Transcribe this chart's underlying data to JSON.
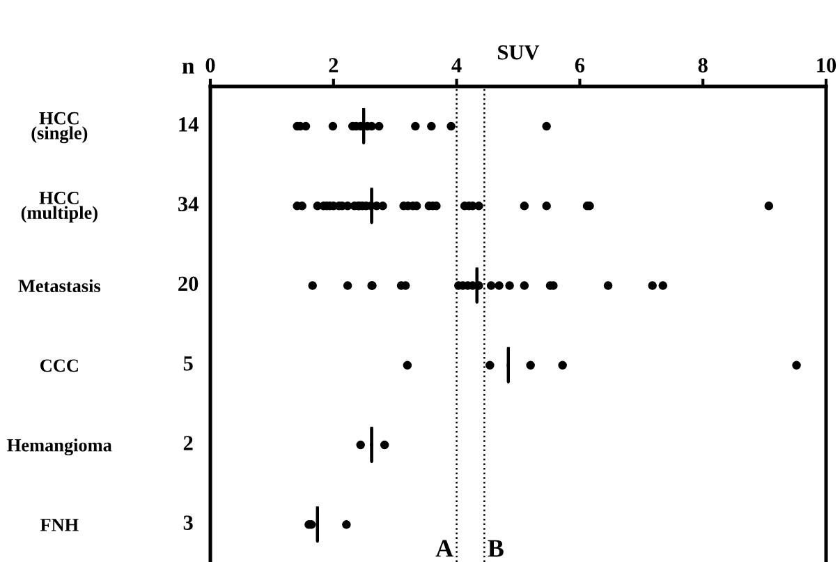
{
  "chart_data": {
    "type": "scatter",
    "orientation": "horizontal",
    "xlabel": "SUV",
    "categories": [
      "HCC\n(single)",
      "HCC\n(multiple)",
      "Metastasis",
      "CCC",
      "Hemangioma",
      "FNH"
    ],
    "xlim": [
      0,
      10
    ],
    "xticks": [
      0,
      2,
      4,
      6,
      8,
      10
    ],
    "grid": false,
    "legend": false,
    "series": [
      {
        "marker": "circle",
        "color": "#000000",
        "x": [
          "HCC\n(single)",
          "HCC\n(single)",
          "HCC\n(single)",
          "HCC\n(single)",
          "HCC\n(single)",
          "HCC\n(single)",
          "HCC\n(single)",
          "HCC\n(single)",
          "HCC\n(single)",
          "HCC\n(single)",
          "HCC\n(single)",
          "HCC\n(single)",
          "HCC\n(single)",
          "HCC\n(single)",
          "HCC\n(multiple)",
          "HCC\n(multiple)",
          "HCC\n(multiple)",
          "HCC\n(multiple)",
          "HCC\n(multiple)",
          "HCC\n(multiple)",
          "HCC\n(multiple)",
          "HCC\n(multiple)",
          "HCC\n(multiple)",
          "HCC\n(multiple)",
          "HCC\n(multiple)",
          "HCC\n(multiple)",
          "HCC\n(multiple)",
          "HCC\n(multiple)",
          "HCC\n(multiple)",
          "HCC\n(multiple)",
          "HCC\n(multiple)",
          "HCC\n(multiple)",
          "HCC\n(multiple)",
          "HCC\n(multiple)",
          "HCC\n(multiple)",
          "HCC\n(multiple)",
          "HCC\n(multiple)",
          "HCC\n(multiple)",
          "HCC\n(multiple)",
          "HCC\n(multiple)",
          "HCC\n(multiple)",
          "HCC\n(multiple)",
          "HCC\n(multiple)",
          "HCC\n(multiple)",
          "HCC\n(multiple)",
          "HCC\n(multiple)",
          "HCC\n(multiple)",
          "HCC\n(multiple)",
          "Metastasis",
          "Metastasis",
          "Metastasis",
          "Metastasis",
          "Metastasis",
          "Metastasis",
          "Metastasis",
          "Metastasis",
          "Metastasis",
          "Metastasis",
          "Metastasis",
          "Metastasis",
          "Metastasis",
          "Metastasis",
          "Metastasis",
          "Metastasis",
          "Metastasis",
          "Metastasis",
          "Metastasis",
          "Metastasis",
          "CCC",
          "CCC",
          "CCC",
          "CCC",
          "CCC",
          "Hemangioma",
          "Hemangioma",
          "FNH",
          "FNH",
          "FNH"
        ],
        "values": [
          1.41,
          1.46,
          1.55,
          1.99,
          2.31,
          2.37,
          2.44,
          2.55,
          2.62,
          2.74,
          3.33,
          3.59,
          3.91,
          5.46,
          1.41,
          1.49,
          1.74,
          1.84,
          1.89,
          1.94,
          2.0,
          2.09,
          2.14,
          2.23,
          2.34,
          2.4,
          2.42,
          2.47,
          2.53,
          2.61,
          2.7,
          2.8,
          3.14,
          3.21,
          3.29,
          3.35,
          3.55,
          3.61,
          3.67,
          4.13,
          4.2,
          4.26,
          4.36,
          5.1,
          5.46,
          6.12,
          6.16,
          9.07,
          1.66,
          2.23,
          2.62,
          2.63,
          3.1,
          3.17,
          4.03,
          4.1,
          4.18,
          4.26,
          4.36,
          4.56,
          4.69,
          4.86,
          5.1,
          5.52,
          5.57,
          6.46,
          7.18,
          7.35,
          3.2,
          4.54,
          5.2,
          5.72,
          9.52,
          2.44,
          2.83,
          1.6,
          1.64,
          2.21
        ]
      },
      {
        "type": "box",
        "color": "#000000",
        "boxes": [
          {
            "low": 2.49,
            "q1": 2.49,
            "median": 2.49,
            "q3": 2.49,
            "high": 2.49
          },
          {
            "low": 2.62,
            "q1": 2.62,
            "median": 2.62,
            "q3": 2.62,
            "high": 2.62
          },
          {
            "low": 4.33,
            "q1": 4.33,
            "median": 4.33,
            "q3": 4.33,
            "high": 4.33
          },
          {
            "low": 4.84,
            "q1": 4.84,
            "median": 4.84,
            "q3": 4.84,
            "high": 4.84
          },
          {
            "low": 2.62,
            "q1": 2.62,
            "median": 2.62,
            "q3": 2.62,
            "high": 2.62
          },
          {
            "low": 1.74,
            "q1": 1.74,
            "median": 1.74,
            "q3": 1.74,
            "high": 1.74
          }
        ]
      }
    ],
    "ref_lines": [
      {
        "axis": "x",
        "value": 4.0,
        "label": "A",
        "line_style": "dotted",
        "color": "#000000"
      },
      {
        "axis": "x",
        "value": 4.45,
        "label": "B",
        "line_style": "dotted",
        "color": "#000000"
      }
    ],
    "annotations": [
      "n",
      "14",
      "34",
      "20",
      "5",
      "2",
      "3"
    ]
  }
}
